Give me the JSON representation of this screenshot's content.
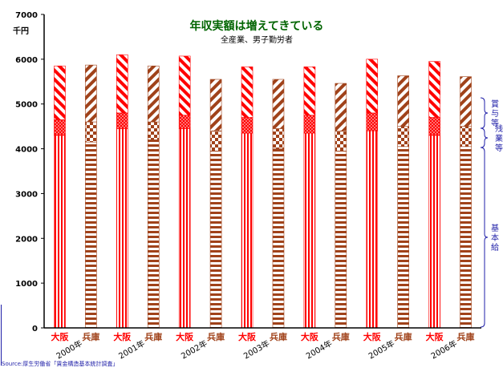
{
  "chart_data": {
    "type": "bar",
    "stacked": true,
    "title": "年収実額は増えてきている",
    "subtitle": "全産業、男子勤労者",
    "ylabel": "千円",
    "ylim": [
      0,
      7000
    ],
    "yticks": [
      0,
      1000,
      2000,
      3000,
      4000,
      5000,
      6000,
      7000
    ],
    "grid": false,
    "categories": [
      "大阪",
      "兵庫",
      "大阪",
      "兵庫",
      "大阪",
      "兵庫",
      "大阪",
      "兵庫",
      "大阪",
      "兵庫",
      "大阪",
      "兵庫",
      "大阪",
      "兵庫"
    ],
    "year_labels": [
      "2000年",
      "2001年",
      "2002年",
      "2003年",
      "2004年",
      "2005年",
      "2006年"
    ],
    "series": [
      {
        "name": "基本給",
        "values": [
          4300,
          4150,
          4450,
          4200,
          4450,
          3950,
          4350,
          4000,
          4350,
          3950,
          4400,
          4050,
          4300,
          4050
        ]
      },
      {
        "name": "残業等",
        "values": [
          350,
          450,
          350,
          400,
          300,
          450,
          350,
          450,
          400,
          450,
          400,
          450,
          400,
          450
        ]
      },
      {
        "name": "賞与等",
        "values": [
          1200,
          1270,
          1300,
          1250,
          1320,
          1150,
          1130,
          1100,
          1080,
          1060,
          1200,
          1130,
          1250,
          1110
        ]
      }
    ],
    "legend_placement": "right",
    "colors": {
      "osaka": "#ff0000",
      "hyogo": "#a0421a",
      "axis": "#000000",
      "title": "#006400",
      "legend": "#1f1fa8"
    }
  },
  "source_text": "Source:厚生労働省「賃金構造基本統計調査」"
}
